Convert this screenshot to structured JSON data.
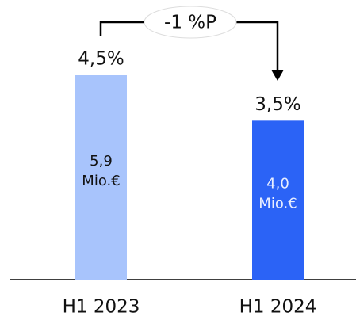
{
  "chart_data": {
    "type": "bar",
    "categories": [
      "H1 2023",
      "H1 2024"
    ],
    "values": [
      4.5,
      3.5
    ],
    "value_labels": [
      "4,5%",
      "3,5%"
    ],
    "inner_labels": [
      [
        "5,9",
        "Mio.€"
      ],
      [
        "4,0",
        "Mio.€"
      ]
    ],
    "colors": [
      "#a8c4fc",
      "#2b63f6"
    ],
    "annotation": "-1 %P"
  }
}
